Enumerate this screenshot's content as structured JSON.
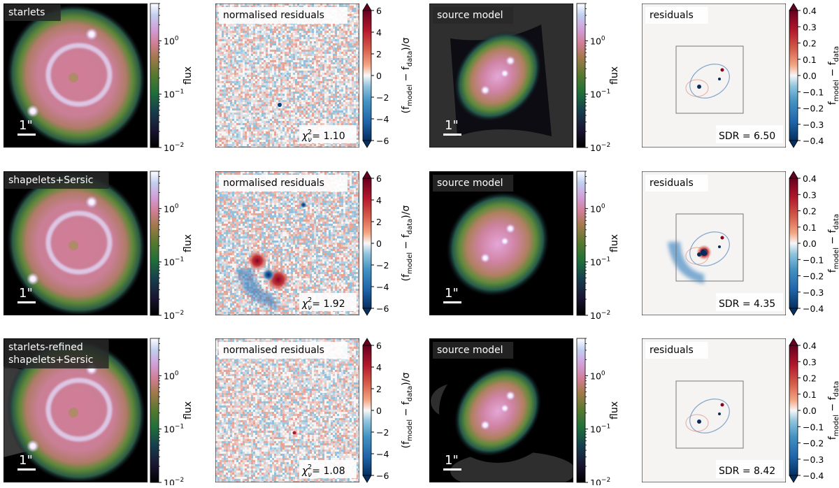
{
  "figure": {
    "rows": [
      {
        "method_label": [
          "starlets"
        ],
        "norm_residuals": {
          "title": "normalised residuals",
          "chi_label": "= 1.10",
          "chi2_nu": 1.1
        },
        "source_model": {
          "title": "source model",
          "variant": "starlets"
        },
        "residuals": {
          "title": "residuals",
          "sdr_label": "SDR = 6.50",
          "sdr": 6.5
        }
      },
      {
        "method_label": [
          "shapelets+Sersic"
        ],
        "norm_residuals": {
          "title": "normalised residuals",
          "chi_label": "= 1.92",
          "chi2_nu": 1.92
        },
        "source_model": {
          "title": "source model",
          "variant": "shapelets"
        },
        "residuals": {
          "title": "residuals",
          "sdr_label": "SDR = 4.35",
          "sdr": 4.35
        }
      },
      {
        "method_label": [
          "starlets-refined",
          "shapelets+Sersic"
        ],
        "norm_residuals": {
          "title": "normalised residuals",
          "chi_label": "= 1.08",
          "chi2_nu": 1.08
        },
        "source_model": {
          "title": "source model",
          "variant": "refined"
        },
        "residuals": {
          "title": "residuals",
          "sdr_label": "SDR = 8.42",
          "sdr": 8.42
        }
      }
    ],
    "scale_bar_label": "1\"",
    "colors": {
      "flux_map": "cubehelix",
      "residual_map": "RdBu_r",
      "panel_edge": "#000000"
    }
  },
  "chart_data": [
    {
      "type": "heatmap",
      "name": "flux colorbar",
      "scale": "log",
      "range": [
        0.01,
        5
      ],
      "ticks": [
        0.01,
        0.1,
        1
      ],
      "tick_labels": [
        {
          "base": "10",
          "exp": "−2"
        },
        {
          "base": "10",
          "exp": "−1"
        },
        {
          "base": "10",
          "exp": "0"
        }
      ],
      "label": "flux"
    },
    {
      "type": "heatmap",
      "name": "normalised residuals colorbar",
      "scale": "linear",
      "range": [
        -6,
        6
      ],
      "ticks": [
        -6,
        -4,
        -2,
        0,
        2,
        4,
        6
      ],
      "tick_labels": [
        "−6",
        "−4",
        "−2",
        "0",
        "2",
        "4",
        "6"
      ],
      "label": {
        "open": "(f",
        "model_sub": "model",
        "minus": " − f",
        "data_sub": "data",
        "close": ")/σ"
      },
      "extend": "both"
    },
    {
      "type": "heatmap",
      "name": "residuals colorbar",
      "scale": "linear",
      "range": [
        -0.4,
        0.4
      ],
      "ticks": [
        -0.4,
        -0.3,
        -0.2,
        -0.1,
        0.0,
        0.1,
        0.2,
        0.3,
        0.4
      ],
      "tick_labels": [
        "−0.4",
        "−0.3",
        "−0.2",
        "−0.1",
        "0.0",
        "0.1",
        "0.2",
        "0.3",
        "0.4"
      ],
      "label": {
        "f1": "f",
        "model_sub": "model",
        "minus": " − f",
        "data_sub": "data"
      },
      "extend": "both"
    }
  ]
}
